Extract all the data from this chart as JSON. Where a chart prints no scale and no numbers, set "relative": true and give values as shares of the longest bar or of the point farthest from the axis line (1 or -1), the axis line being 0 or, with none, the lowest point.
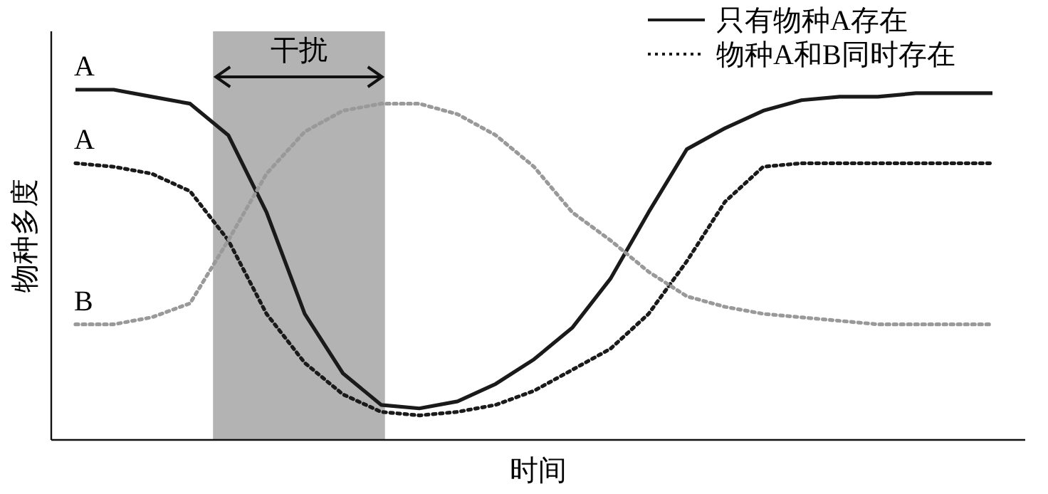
{
  "chart_data": {
    "type": "line",
    "relative": true,
    "xlabel": "时间",
    "ylabel": "物种多度",
    "tick_labels": false,
    "legend": "top right",
    "categories": [
      null,
      null,
      null,
      null,
      null,
      null,
      null,
      null,
      null,
      null,
      null,
      null,
      null,
      null,
      null,
      null,
      null,
      null,
      null,
      null,
      null,
      null,
      null,
      null,
      null
    ],
    "series": [
      {
        "name": "只有物种A存在",
        "color": "#1a1a1a",
        "line_style": "solid",
        "values": [
          1.0,
          1.0,
          0.98,
          0.96,
          0.87,
          0.65,
          0.36,
          0.19,
          0.1,
          0.09,
          0.11,
          0.16,
          0.23,
          0.32,
          0.46,
          0.65,
          0.83,
          0.89,
          0.94,
          0.97,
          0.98,
          0.98,
          0.99,
          0.99,
          0.99
        ]
      },
      {
        "name": "物种A和B同时存在",
        "color": "#1a1a1a",
        "line_style": "dotted",
        "values": [
          0.79,
          0.78,
          0.76,
          0.71,
          0.57,
          0.36,
          0.22,
          0.13,
          0.08,
          0.07,
          0.08,
          0.1,
          0.14,
          0.2,
          0.26,
          0.36,
          0.51,
          0.68,
          0.78,
          0.79,
          0.79,
          0.79,
          0.79,
          0.79,
          0.79
        ]
      },
      {
        "color": "#999999",
        "line_style": "dotted",
        "values": [
          0.33,
          0.33,
          0.35,
          0.39,
          0.57,
          0.76,
          0.88,
          0.94,
          0.96,
          0.96,
          0.93,
          0.87,
          0.78,
          0.65,
          0.57,
          0.48,
          0.41,
          0.38,
          0.36,
          0.35,
          0.34,
          0.33,
          0.33,
          0.33,
          0.33
        ]
      }
    ],
    "annotations": [
      "A",
      "A",
      "B",
      "干扰"
    ]
  }
}
